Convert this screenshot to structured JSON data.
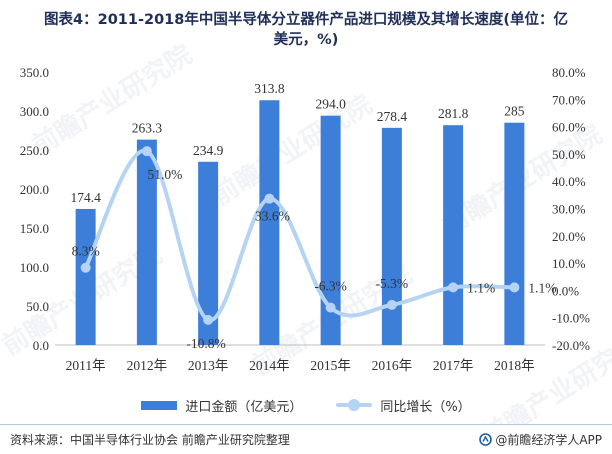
{
  "title": {
    "line1": "图表4：2011-2018年中国半导体分立器件产品进口规模及其增长速度(单位：亿",
    "line2": "美元，%)"
  },
  "chart_data": {
    "type": "bar",
    "categories": [
      "2011年",
      "2012年",
      "2013年",
      "2014年",
      "2015年",
      "2016年",
      "2017年",
      "2018年"
    ],
    "series": [
      {
        "name": "进口金额（亿美元）",
        "type": "bar",
        "axis": "left",
        "values": [
          174.4,
          263.3,
          234.9,
          313.8,
          294.0,
          278.4,
          281.8,
          285
        ],
        "labels": [
          "174.4",
          "263.3",
          "234.9",
          "313.8",
          "294.0",
          "278.4",
          "281.8",
          "285"
        ],
        "color": "#3d7fd8"
      },
      {
        "name": "同比增长（%）",
        "type": "line",
        "axis": "right",
        "smooth": true,
        "values": [
          8.3,
          51.0,
          -10.8,
          33.6,
          -6.3,
          -5.3,
          1.1,
          1.1
        ],
        "labels": [
          "8.3%",
          "51.0%",
          "-10.8%",
          "33.6%",
          "-6.3%",
          "-5.3%",
          "1.1%",
          "1.1%"
        ],
        "color": "#b5d3f3"
      }
    ],
    "left_axis": {
      "ylim": [
        0,
        350
      ],
      "ticks": [
        "0.0",
        "50.0",
        "100.0",
        "150.0",
        "200.0",
        "250.0",
        "300.0",
        "350.0"
      ]
    },
    "right_axis": {
      "ylim": [
        -20,
        80
      ],
      "ticks": [
        "-20.0%",
        "-10.0%",
        "0.0%",
        "10.0%",
        "20.0%",
        "30.0%",
        "40.0%",
        "50.0%",
        "60.0%",
        "70.0%",
        "80.0%"
      ]
    },
    "grid": false,
    "legend_position": "bottom"
  },
  "legend": {
    "bar_label": "进口金额（亿美元）",
    "line_label": "同比增长（%）"
  },
  "footer": {
    "source": "资料来源：中国半导体行业协会 前瞻产业研究院整理",
    "brand": "@前瞻经济学人APP"
  },
  "watermark": "前瞻产业研究院",
  "colors": {
    "bar": "#3d7fd8",
    "line": "#b5d3f3",
    "title": "#1f2f58"
  }
}
